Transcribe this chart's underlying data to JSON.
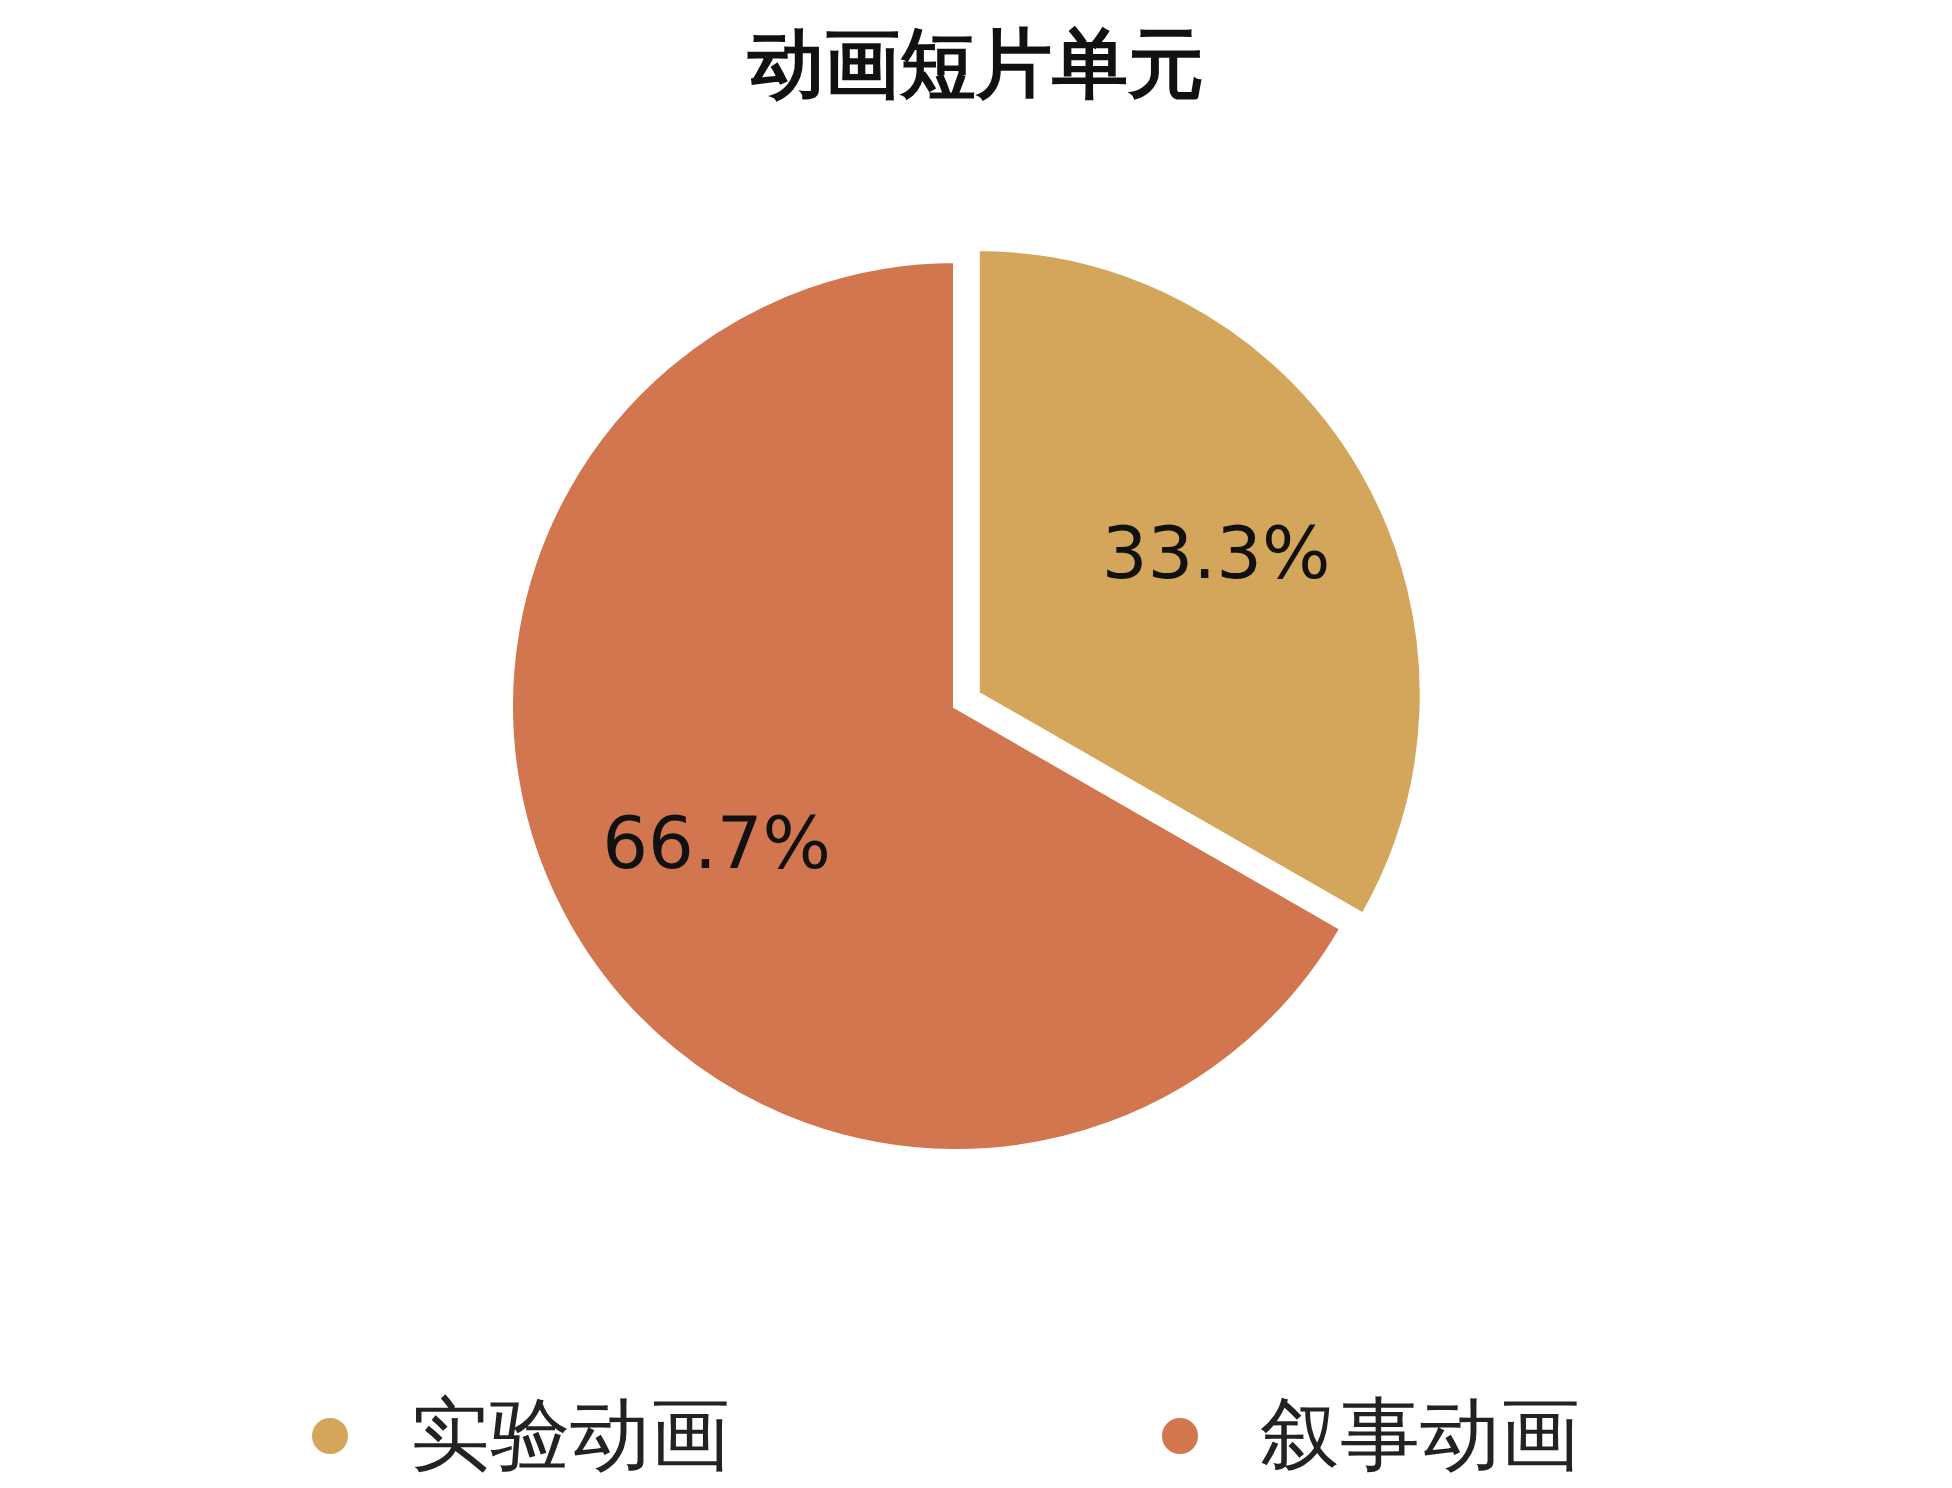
{
  "chart_data": {
    "type": "pie",
    "title": "动画短片单元",
    "categories": [
      "实验动画",
      "叙事动画"
    ],
    "values": [
      33.3,
      66.7
    ],
    "colors": [
      "#d4a65b",
      "#d27650"
    ],
    "value_labels": [
      "33.3%",
      "66.7%"
    ],
    "legend": "bottom"
  }
}
